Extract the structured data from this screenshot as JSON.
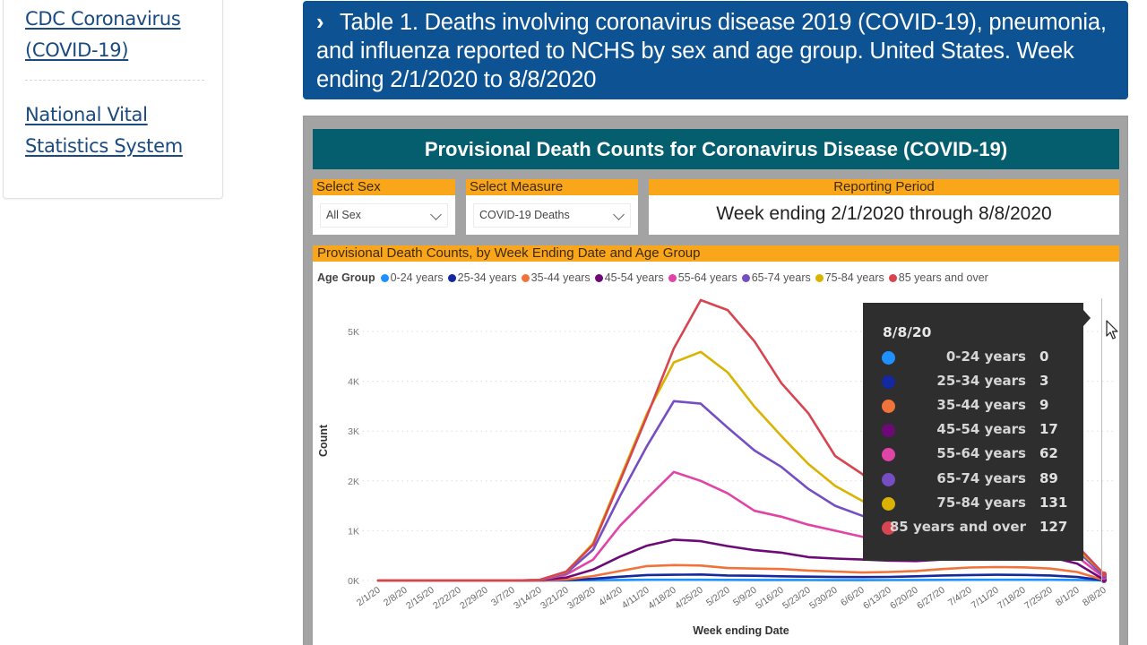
{
  "sidebar": {
    "links": [
      {
        "label": "CDC Coronavirus (COVID-19)"
      },
      {
        "label": "National Vital Statistics System"
      }
    ]
  },
  "banner": {
    "chevron": "›",
    "title": "Table 1. Deaths involving coronavirus disease 2019 (COVID-19), pneumonia, and influenza reported to NCHS by sex and age group. United States. Week ending 2/1/2020 to 8/8/2020"
  },
  "dashboard": {
    "title": "Provisional Death Counts for Coronavirus Disease (COVID-19)",
    "slicers": {
      "sex": {
        "header": "Select Sex",
        "value": "All Sex"
      },
      "measure": {
        "header": "Select Measure",
        "value": "COVID-19 Deaths"
      },
      "period": {
        "header": "Reporting Period",
        "value": "Week ending 2/1/2020 through 8/8/2020"
      }
    },
    "chart_header": "Provisional Death Counts, by Week Ending Date and Age Group",
    "legend_title": "Age Group"
  },
  "colors": {
    "banner": "#0d5394",
    "dash_title": "#055e6e",
    "slicer_header": "#f9a61a",
    "tooltip_bg": "#2e2e2e"
  },
  "chart_data": {
    "type": "line",
    "title": "Provisional Death Counts, by Week Ending Date and Age Group",
    "xlabel": "Week ending Date",
    "ylabel": "Count",
    "ylim": [
      0,
      5700
    ],
    "yticks": [
      0,
      1000,
      2000,
      3000,
      4000,
      5000
    ],
    "ytick_labels": [
      "0K",
      "1K",
      "2K",
      "3K",
      "4K",
      "5K"
    ],
    "grid": true,
    "legend_placement": "top-left",
    "x": [
      "2/1/20",
      "2/8/20",
      "2/15/20",
      "2/22/20",
      "2/29/20",
      "3/7/20",
      "3/14/20",
      "3/21/20",
      "3/28/20",
      "4/4/20",
      "4/11/20",
      "4/18/20",
      "4/25/20",
      "5/2/20",
      "5/9/20",
      "5/16/20",
      "5/23/20",
      "5/30/20",
      "6/6/20",
      "6/13/20",
      "6/20/20",
      "6/27/20",
      "7/4/20",
      "7/11/20",
      "7/18/20",
      "7/25/20",
      "8/1/20",
      "8/8/20"
    ],
    "series": [
      {
        "name": "0-24 years",
        "color": "#1e90ff",
        "values": [
          0,
          0,
          0,
          0,
          0,
          0,
          0,
          2,
          5,
          10,
          14,
          15,
          14,
          12,
          11,
          10,
          9,
          8,
          8,
          9,
          10,
          12,
          14,
          15,
          15,
          14,
          10,
          0
        ]
      },
      {
        "name": "25-34 years",
        "color": "#1428a0",
        "values": [
          0,
          0,
          0,
          0,
          0,
          0,
          1,
          8,
          35,
          75,
          110,
          115,
          120,
          100,
          95,
          85,
          78,
          70,
          68,
          72,
          85,
          100,
          110,
          115,
          112,
          100,
          70,
          3
        ]
      },
      {
        "name": "35-44 years",
        "color": "#f0733c",
        "values": [
          0,
          0,
          0,
          0,
          0,
          0,
          2,
          20,
          90,
          190,
          290,
          310,
          300,
          250,
          240,
          230,
          200,
          180,
          160,
          170,
          190,
          230,
          260,
          270,
          265,
          240,
          170,
          9
        ]
      },
      {
        "name": "45-54 years",
        "color": "#6e0a78",
        "values": [
          0,
          0,
          0,
          0,
          0,
          0,
          5,
          60,
          220,
          480,
          700,
          820,
          790,
          690,
          610,
          560,
          470,
          440,
          420,
          400,
          390,
          420,
          470,
          500,
          500,
          470,
          340,
          17
        ]
      },
      {
        "name": "55-64 years",
        "color": "#e044a7",
        "values": [
          0,
          0,
          0,
          0,
          0,
          0,
          8,
          120,
          420,
          1100,
          1650,
          2180,
          2000,
          1750,
          1400,
          1280,
          1120,
          1000,
          880,
          780,
          720,
          740,
          780,
          820,
          800,
          720,
          480,
          62
        ]
      },
      {
        "name": "65-74 years",
        "color": "#744ec2",
        "values": [
          0,
          0,
          0,
          0,
          0,
          0,
          10,
          150,
          620,
          1700,
          2700,
          3600,
          3550,
          3070,
          2610,
          2280,
          1840,
          1500,
          1300,
          1100,
          980,
          1000,
          1020,
          1040,
          1000,
          880,
          600,
          89
        ]
      },
      {
        "name": "75-84 years",
        "color": "#d9b300",
        "values": [
          0,
          0,
          0,
          0,
          0,
          0,
          10,
          170,
          750,
          2050,
          3350,
          4380,
          4590,
          4180,
          3490,
          2900,
          2340,
          1900,
          1600,
          1320,
          1160,
          1150,
          1150,
          1150,
          1100,
          960,
          650,
          131
        ]
      },
      {
        "name": "85 years and over",
        "color": "#d64550",
        "values": [
          0,
          0,
          0,
          0,
          0,
          0,
          10,
          180,
          720,
          2000,
          3300,
          4660,
          5630,
          5430,
          4800,
          3960,
          3360,
          2500,
          2140,
          1620,
          1350,
          1250,
          1220,
          1200,
          1160,
          1020,
          700,
          127
        ]
      }
    ]
  },
  "tooltip": {
    "date": "8/8/20",
    "rows": [
      {
        "label": "0-24 years",
        "value": "0",
        "color": "#1e90ff"
      },
      {
        "label": "25-34 years",
        "value": "3",
        "color": "#1428a0"
      },
      {
        "label": "35-44 years",
        "value": "9",
        "color": "#f0733c"
      },
      {
        "label": "45-54 years",
        "value": "17",
        "color": "#6e0a78"
      },
      {
        "label": "55-64 years",
        "value": "62",
        "color": "#e044a7"
      },
      {
        "label": "65-74 years",
        "value": "89",
        "color": "#744ec2"
      },
      {
        "label": "75-84 years",
        "value": "131",
        "color": "#d9b300"
      },
      {
        "label": "85 years and over",
        "value": "127",
        "color": "#d64550"
      }
    ]
  }
}
